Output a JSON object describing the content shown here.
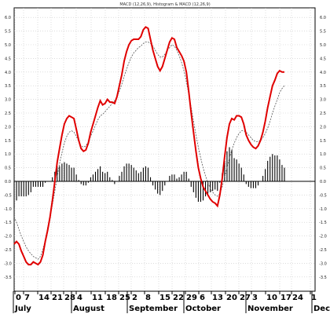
{
  "chart_data": {
    "type": "line",
    "title": "MACD (12,26,9), Histogram & MACD (12,26,9)",
    "y_range": [
      -3.75,
      6.25
    ],
    "y_ticks": [
      "6.0",
      "5.5",
      "5.0",
      "4.5",
      "4.0",
      "3.5",
      "3.0",
      "2.5",
      "2.0",
      "1.5",
      "1.0",
      "0.5",
      "0.0",
      "-0.5",
      "-1.0",
      "-1.5",
      "-2.0",
      "-2.5",
      "-3.0",
      "-3.5"
    ],
    "x_ticks": [
      "0",
      "7",
      "14",
      "21",
      "28",
      "4",
      "11",
      "18",
      "25",
      "2",
      "8",
      "15",
      "22",
      "29",
      "6",
      "13",
      "20",
      "27",
      "3",
      "10",
      "17",
      "24",
      "1"
    ],
    "months": [
      "July",
      "August",
      "September",
      "October",
      "November",
      "Dece"
    ],
    "grid": true,
    "series": [
      {
        "values": [
          -2.3,
          -2.2,
          -2.3,
          -2.55,
          -2.75,
          -2.95,
          -3.05,
          -3.05,
          -2.95,
          -3.0,
          -3.05,
          -2.95,
          -2.7,
          -2.2,
          -1.8,
          -1.3,
          -0.7,
          0.0,
          0.7,
          1.2,
          1.7,
          2.1,
          2.3,
          2.4,
          2.35,
          2.3,
          1.9,
          1.5,
          1.2,
          1.1,
          1.15,
          1.4,
          1.8,
          2.1,
          2.4,
          2.7,
          2.95,
          2.8,
          2.85,
          3.0,
          2.9,
          2.9,
          2.85,
          3.1,
          3.5,
          3.9,
          4.4,
          4.75,
          5.0,
          5.15,
          5.2,
          5.2,
          5.2,
          5.3,
          5.55,
          5.65,
          5.6,
          5.2,
          4.8,
          4.5,
          4.2,
          4.05,
          4.2,
          4.5,
          4.8,
          5.1,
          5.25,
          5.2,
          4.9,
          4.75,
          4.6,
          4.4,
          4.0,
          3.3,
          2.5,
          1.8,
          1.1,
          0.5,
          0.1,
          -0.2,
          -0.35,
          -0.5,
          -0.65,
          -0.75,
          -0.8,
          -0.9,
          -0.5,
          0.1,
          0.9,
          1.6,
          2.1,
          2.3,
          2.25,
          2.4,
          2.4,
          2.35,
          2.1,
          1.7,
          1.5,
          1.35,
          1.25,
          1.2,
          1.3,
          1.5,
          1.8,
          2.2,
          2.7,
          3.1,
          3.5,
          3.7,
          3.95,
          4.05,
          4.0,
          4.0
        ]
      },
      {
        "values": [
          -1.3,
          -1.5,
          -1.75,
          -2.0,
          -2.2,
          -2.4,
          -2.55,
          -2.65,
          -2.75,
          -2.8,
          -2.85,
          -2.75,
          -2.5,
          -2.15,
          -1.7,
          -1.3,
          -0.85,
          -0.35,
          0.15,
          0.65,
          1.05,
          1.4,
          1.65,
          1.8,
          1.85,
          1.8,
          1.65,
          1.45,
          1.3,
          1.25,
          1.3,
          1.45,
          1.65,
          1.85,
          2.05,
          2.25,
          2.4,
          2.45,
          2.55,
          2.65,
          2.75,
          2.85,
          2.95,
          3.1,
          3.3,
          3.55,
          3.85,
          4.1,
          4.35,
          4.55,
          4.7,
          4.8,
          4.9,
          4.95,
          5.05,
          5.1,
          5.1,
          5.05,
          4.95,
          4.8,
          4.65,
          4.55,
          4.55,
          4.65,
          4.8,
          4.9,
          5.0,
          4.95,
          4.8,
          4.6,
          4.35,
          4.05,
          3.65,
          3.2,
          2.7,
          2.2,
          1.7,
          1.25,
          0.85,
          0.5,
          0.2,
          -0.05,
          -0.25,
          -0.4,
          -0.5,
          -0.55,
          -0.45,
          -0.2,
          0.15,
          0.5,
          0.85,
          1.15,
          1.4,
          1.6,
          1.75,
          1.85,
          1.85,
          1.8,
          1.7,
          1.6,
          1.5,
          1.45,
          1.45,
          1.5,
          1.6,
          1.75,
          1.95,
          2.2,
          2.5,
          2.75,
          3.0,
          3.25,
          3.4,
          3.5
        ]
      },
      {
        "values": [
          -1.0,
          -0.7,
          -0.55,
          -0.55,
          -0.55,
          -0.55,
          -0.5,
          -0.4,
          -0.2,
          -0.2,
          -0.2,
          -0.2,
          -0.2,
          -0.05,
          0.0,
          0.0,
          0.15,
          0.35,
          0.55,
          0.55,
          0.65,
          0.7,
          0.65,
          0.6,
          0.5,
          0.5,
          0.25,
          0.05,
          -0.1,
          -0.15,
          -0.15,
          -0.05,
          0.15,
          0.25,
          0.35,
          0.45,
          0.55,
          0.35,
          0.3,
          0.35,
          0.15,
          0.05,
          -0.1,
          0.0,
          0.2,
          0.35,
          0.55,
          0.65,
          0.65,
          0.6,
          0.5,
          0.4,
          0.3,
          0.35,
          0.5,
          0.55,
          0.5,
          0.15,
          -0.15,
          -0.3,
          -0.45,
          -0.5,
          -0.35,
          -0.15,
          0.0,
          0.2,
          0.25,
          0.25,
          0.1,
          0.15,
          0.25,
          0.35,
          0.35,
          0.1,
          -0.2,
          -0.4,
          -0.6,
          -0.75,
          -0.75,
          -0.7,
          -0.55,
          -0.45,
          -0.4,
          -0.35,
          -0.3,
          -0.35,
          -0.05,
          0.3,
          0.75,
          1.1,
          1.25,
          1.15,
          0.85,
          0.8,
          0.65,
          0.5,
          0.25,
          -0.1,
          -0.2,
          -0.25,
          -0.25,
          -0.25,
          -0.15,
          0.0,
          0.2,
          0.45,
          0.75,
          0.9,
          1.0,
          0.95,
          0.95,
          0.8,
          0.6,
          0.5
        ]
      }
    ]
  }
}
